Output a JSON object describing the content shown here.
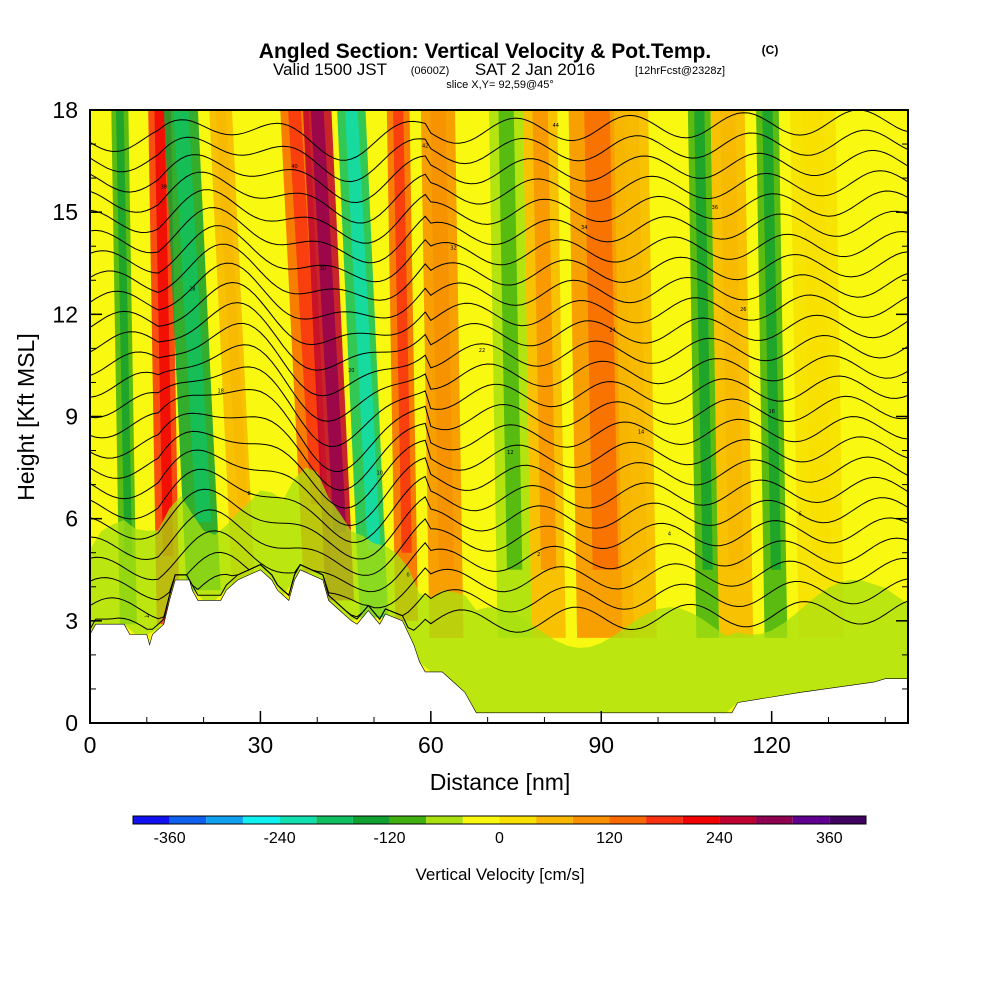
{
  "chart_data": {
    "type": "heatmap",
    "title": {
      "main": "Angled Section: Vertical Velocity & Pot.Temp.",
      "units_badge": "(C)",
      "valid_prefix": "Valid 1500 JST",
      "valid_utc": "(0600Z)",
      "valid_date": "SAT 2 Jan 2016",
      "forecast": "[12hrFcst@2328z]",
      "slice": "slice X,Y= 92,59@45°"
    },
    "xlabel": "Distance [nm]",
    "ylabel": "Height [Kft MSL]",
    "xlim": [
      0,
      144
    ],
    "ylim": [
      0,
      18
    ],
    "xticks": [
      0,
      30,
      60,
      90,
      120
    ],
    "yticks": [
      0,
      3,
      6,
      9,
      12,
      15,
      18
    ],
    "colorbar": {
      "title": "Vertical Velocity [cm/s]",
      "levels": [
        -400,
        -360,
        -320,
        -280,
        -240,
        -200,
        -160,
        -120,
        -80,
        -40,
        0,
        40,
        80,
        120,
        160,
        200,
        240,
        280,
        320,
        360,
        400
      ],
      "ticks": [
        "-360",
        "-240",
        "-120",
        "0",
        "120",
        "240",
        "360"
      ],
      "tick_values": [
        -360,
        -240,
        -120,
        0,
        120,
        240,
        360
      ],
      "colors": [
        "#1010f0",
        "#1060f0",
        "#10a0f0",
        "#10f0f0",
        "#10e0b0",
        "#10c060",
        "#10a030",
        "#40b010",
        "#a8e010",
        "#f8f810",
        "#f8e000",
        "#f8b800",
        "#f89000",
        "#f86800",
        "#f83010",
        "#f00000",
        "#c00030",
        "#900050",
        "#600090",
        "#400060"
      ]
    },
    "velocity_bands": [
      {
        "x": 6,
        "w": 1.5,
        "value": -100
      },
      {
        "x": 13,
        "w": 2,
        "value": 180
      },
      {
        "x": 18,
        "w": 3,
        "value": -150
      },
      {
        "x": 25,
        "w": 2,
        "value": 50
      },
      {
        "x": 38,
        "w": 2.5,
        "value": 150
      },
      {
        "x": 42,
        "w": 2.5,
        "value": 240
      },
      {
        "x": 48,
        "w": 2.5,
        "value": -170
      },
      {
        "x": 55,
        "w": 2,
        "value": 130
      },
      {
        "x": 62,
        "w": 3,
        "value": 90
      },
      {
        "x": 74,
        "w": 3,
        "value": -80
      },
      {
        "x": 80,
        "w": 3,
        "value": 70
      },
      {
        "x": 90,
        "w": 5,
        "value": 110
      },
      {
        "x": 96,
        "w": 3,
        "value": 60
      },
      {
        "x": 108,
        "w": 2,
        "value": -110
      },
      {
        "x": 113,
        "w": 3,
        "value": 60
      },
      {
        "x": 120,
        "w": 2,
        "value": -100
      },
      {
        "x": 128,
        "w": 4,
        "value": 30
      },
      {
        "x": 138,
        "w": 4,
        "value": -30
      }
    ],
    "terrain_height_kft": [
      [
        0,
        2.6
      ],
      [
        1,
        2.9
      ],
      [
        6,
        2.9
      ],
      [
        7,
        2.6
      ],
      [
        10,
        2.6
      ],
      [
        10.5,
        2.3
      ],
      [
        11,
        2.6
      ],
      [
        13,
        2.9
      ],
      [
        14,
        3.6
      ],
      [
        15,
        4.2
      ],
      [
        17.5,
        4.2
      ],
      [
        18,
        3.9
      ],
      [
        19,
        3.6
      ],
      [
        23,
        3.6
      ],
      [
        24,
        3.9
      ],
      [
        26,
        4.2
      ],
      [
        30,
        4.5
      ],
      [
        32,
        4.2
      ],
      [
        33,
        3.9
      ],
      [
        35,
        3.6
      ],
      [
        36,
        4.2
      ],
      [
        37,
        4.5
      ],
      [
        41,
        4.2
      ],
      [
        42,
        3.6
      ],
      [
        44,
        3.3
      ],
      [
        46,
        3.0
      ],
      [
        47,
        2.9
      ],
      [
        49,
        3.3
      ],
      [
        51,
        2.9
      ],
      [
        52,
        3.2
      ],
      [
        55,
        3.0
      ],
      [
        57,
        2.3
      ],
      [
        58,
        1.8
      ],
      [
        59,
        1.5
      ],
      [
        62,
        1.5
      ],
      [
        64,
        1.2
      ],
      [
        66,
        0.9
      ],
      [
        67,
        0.6
      ],
      [
        68,
        0.3
      ],
      [
        113,
        0.3
      ],
      [
        114,
        0.6
      ],
      [
        125,
        0.9
      ],
      [
        138,
        1.2
      ],
      [
        140,
        1.3
      ],
      [
        144,
        1.3
      ]
    ],
    "isentrope_base_heights_kft": [
      3.0,
      3.6,
      4.2,
      4.8,
      5.4,
      6.0,
      6.6,
      7.2,
      7.8,
      8.4,
      9.0,
      9.6,
      10.2,
      10.8,
      11.4,
      12.0,
      12.6,
      13.2,
      13.8,
      14.4,
      15.0,
      15.6,
      16.2,
      16.8,
      17.4
    ],
    "isentrope_labels": [
      "-4",
      "-2",
      "0",
      "2",
      "4",
      "6",
      "8",
      "10",
      "12",
      "14",
      "16",
      "18",
      "20",
      "22",
      "24",
      "26",
      "28",
      "30",
      "32",
      "34",
      "36",
      "38",
      "40",
      "42",
      "44"
    ]
  }
}
